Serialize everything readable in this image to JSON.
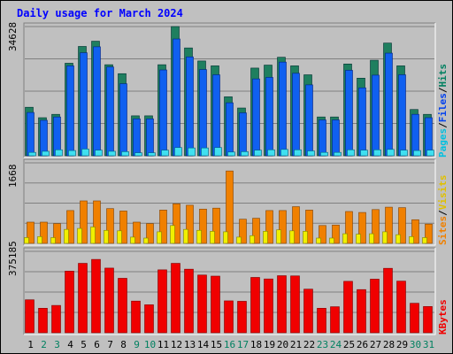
{
  "chart_data": {
    "type": "bar",
    "title": "Daily usage for March 2024",
    "categories": [
      "1",
      "2",
      "3",
      "4",
      "5",
      "6",
      "7",
      "8",
      "9",
      "10",
      "11",
      "12",
      "13",
      "14",
      "15",
      "16",
      "17",
      "18",
      "19",
      "20",
      "21",
      "22",
      "23",
      "24",
      "25",
      "26",
      "27",
      "28",
      "29",
      "30",
      "31"
    ],
    "weekend_days": [
      "2",
      "3",
      "9",
      "10",
      "16",
      "17",
      "23",
      "24",
      "30",
      "31"
    ],
    "panels": [
      {
        "id": "hits",
        "ymax_label": "34628",
        "ylim": [
          0,
          34628
        ],
        "legend": [
          "Pages",
          "/",
          "Files",
          "/",
          "Hits"
        ],
        "series": [
          {
            "name": "Hits",
            "color": "#1f7f5f",
            "values": [
              13000,
              10200,
              11100,
              24800,
              29300,
              30700,
              24400,
              22000,
              10700,
              10700,
              24400,
              34628,
              28900,
              25400,
              24100,
              15800,
              12800,
              23500,
              24300,
              26400,
              24100,
              21700,
              10400,
              10400,
              24600,
              20800,
              25600,
              30200,
              24100,
              12400,
              11100
            ]
          },
          {
            "name": "Files",
            "color": "#1060f0",
            "values": [
              11600,
              9500,
              10400,
              24100,
              27600,
              29200,
              23800,
              19300,
              9900,
              9900,
              23000,
              31300,
              26500,
              23100,
              21700,
              14200,
              11500,
              20600,
              21000,
              25100,
              22100,
              19000,
              9600,
              9600,
              22900,
              18200,
              21600,
              27500,
              21700,
              11100,
              10200
            ]
          },
          {
            "name": "Pages",
            "color": "#40e0f0",
            "values": [
              900,
              1200,
              1600,
              1400,
              1800,
              1500,
              1200,
              1100,
              800,
              800,
              1500,
              2200,
              2100,
              2100,
              2200,
              1000,
              1100,
              1500,
              1600,
              1700,
              1600,
              1300,
              900,
              900,
              1600,
              1500,
              1600,
              1700,
              1500,
              1400,
              1500
            ]
          }
        ]
      },
      {
        "id": "visits",
        "ymax_label": "1668",
        "ylim": [
          0,
          1668
        ],
        "legend": [
          "Sites",
          "/",
          "Visits"
        ],
        "series": [
          {
            "name": "Visits",
            "color": "#f08000",
            "values": [
              440,
              440,
              410,
              680,
              880,
              880,
              720,
              670,
              440,
              410,
              690,
              820,
              790,
              710,
              730,
              1500,
              500,
              520,
              680,
              680,
              760,
              690,
              370,
              380,
              660,
              640,
              700,
              750,
              740,
              490,
              400
            ]
          },
          {
            "name": "Sites",
            "color": "#f0f000",
            "values": [
              120,
              140,
              120,
              290,
              310,
              340,
              270,
              260,
              130,
              110,
              240,
              370,
              290,
              270,
              250,
              240,
              130,
              160,
              250,
              280,
              260,
              250,
              110,
              110,
              200,
              190,
              200,
              240,
              180,
              140,
              120
            ]
          }
        ]
      },
      {
        "id": "kbytes",
        "ymax_label": "375185",
        "ylim": [
          0,
          375185
        ],
        "legend": [
          "KBytes"
        ],
        "series": [
          {
            "name": "KBytes",
            "color": "#f00000",
            "values": [
              152000,
              113000,
              126000,
              284000,
              320000,
              338000,
              298000,
              251000,
              146000,
              129000,
              290000,
              320000,
              293000,
              266000,
              261000,
              147000,
              145000,
              255000,
              248000,
              263000,
              262000,
              201000,
              113000,
              120000,
              237000,
              199000,
              247000,
              297000,
              238000,
              136000,
              121000
            ]
          }
        ]
      }
    ]
  },
  "colors": {
    "frame_bg": "#c0c0c0",
    "plot_bg": "#c0c0c0",
    "title": "#0000ff",
    "weekday_label": "#000000",
    "weekend_label": "#008060",
    "pages_legend": "#00c0e0",
    "files_legend": "#0040f0",
    "hits_legend": "#008060",
    "sites_legend": "#f08000",
    "visits_legend": "#e0c000",
    "kbytes_legend": "#f00000"
  }
}
